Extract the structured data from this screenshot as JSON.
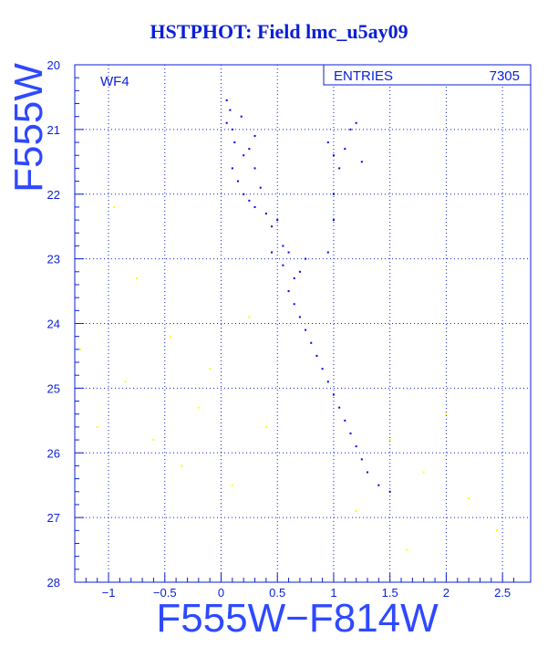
{
  "chart_data": {
    "type": "scatter",
    "title": "HSTPHOT: Field lmc_u5ay09",
    "panel_label": "WF4",
    "xlabel": "F555W−F814W",
    "ylabel": "F555W",
    "xlim": [
      -1.3,
      2.75
    ],
    "ylim": [
      20,
      28
    ],
    "y_inverted": true,
    "x_ticks": [
      -1,
      -0.5,
      0,
      0.5,
      1,
      1.5,
      2,
      2.5
    ],
    "x_tick_labels": [
      "−1",
      "−0.5",
      "0",
      "0.5",
      "1",
      "1.5",
      "2",
      "2.5"
    ],
    "y_ticks": [
      20,
      21,
      22,
      23,
      24,
      25,
      26,
      27,
      28
    ],
    "y_tick_labels": [
      "20",
      "21",
      "22",
      "23",
      "24",
      "25",
      "26",
      "27",
      "28"
    ],
    "grid": "dotted",
    "stats": {
      "label": "ENTRIES",
      "value": "7305"
    },
    "series": [
      {
        "color": "#0000e6",
        "description": "main stellar sequence",
        "points": [
          [
            0.05,
            20.55
          ],
          [
            0.05,
            20.9
          ],
          [
            0.08,
            20.7
          ],
          [
            0.1,
            21.0
          ],
          [
            0.12,
            21.2
          ],
          [
            0.18,
            20.8
          ],
          [
            0.2,
            21.4
          ],
          [
            0.25,
            21.3
          ],
          [
            0.3,
            21.1
          ],
          [
            0.3,
            21.6
          ],
          [
            0.1,
            21.6
          ],
          [
            0.15,
            21.8
          ],
          [
            0.2,
            22.0
          ],
          [
            0.25,
            22.1
          ],
          [
            0.3,
            22.2
          ],
          [
            0.35,
            21.9
          ],
          [
            0.4,
            22.3
          ],
          [
            0.45,
            22.5
          ],
          [
            0.5,
            22.4
          ],
          [
            0.55,
            22.8
          ],
          [
            0.6,
            22.9
          ],
          [
            0.45,
            22.9
          ],
          [
            0.55,
            23.1
          ],
          [
            0.65,
            23.3
          ],
          [
            0.7,
            23.2
          ],
          [
            0.75,
            23.0
          ],
          [
            0.6,
            23.5
          ],
          [
            0.65,
            23.7
          ],
          [
            0.7,
            23.9
          ],
          [
            0.75,
            24.1
          ],
          [
            0.8,
            24.3
          ],
          [
            0.85,
            24.5
          ],
          [
            0.9,
            24.7
          ],
          [
            0.95,
            24.9
          ],
          [
            1.0,
            25.1
          ],
          [
            1.05,
            25.3
          ],
          [
            1.1,
            25.5
          ],
          [
            1.15,
            25.7
          ],
          [
            1.2,
            25.9
          ],
          [
            1.25,
            26.1
          ],
          [
            1.3,
            26.3
          ],
          [
            1.4,
            26.5
          ],
          [
            1.5,
            26.6
          ],
          [
            0.95,
            21.2
          ],
          [
            1.0,
            21.4
          ],
          [
            1.05,
            21.6
          ],
          [
            1.1,
            21.3
          ],
          [
            1.15,
            21.0
          ],
          [
            1.2,
            20.9
          ],
          [
            1.25,
            21.5
          ],
          [
            1.0,
            22.0
          ],
          [
            1.0,
            22.4
          ],
          [
            0.95,
            22.9
          ]
        ]
      },
      {
        "color": "#ffff00",
        "description": "faint field points",
        "points": [
          [
            -1.25,
            24.4
          ],
          [
            -1.1,
            25.6
          ],
          [
            -0.95,
            22.2
          ],
          [
            -0.85,
            24.9
          ],
          [
            -0.75,
            23.3
          ],
          [
            -0.6,
            25.8
          ],
          [
            -0.45,
            24.2
          ],
          [
            -0.35,
            26.2
          ],
          [
            -0.2,
            25.3
          ],
          [
            -0.1,
            24.7
          ],
          [
            0.1,
            26.5
          ],
          [
            0.25,
            23.9
          ],
          [
            0.4,
            25.6
          ],
          [
            1.2,
            26.9
          ],
          [
            1.5,
            25.8
          ],
          [
            1.8,
            26.3
          ],
          [
            2.0,
            25.4
          ],
          [
            2.2,
            26.7
          ],
          [
            2.45,
            27.2
          ],
          [
            1.65,
            27.5
          ]
        ]
      }
    ]
  }
}
